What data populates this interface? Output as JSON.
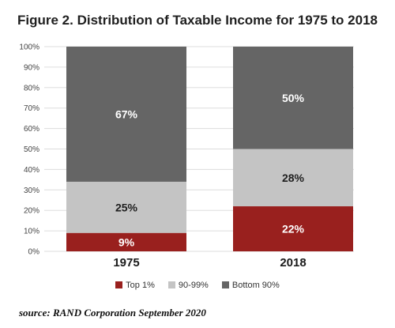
{
  "colors": {
    "top_1": "#99201e",
    "p90_99": "#c4c4c4",
    "bottom_90": "#656565",
    "label_on_dark": "#ffffff",
    "label_on_light": "#1f1f1f",
    "grid": "#dddddd"
  },
  "chart_data": {
    "type": "bar",
    "stacked": true,
    "title": "Figure 2. Distribution of Taxable Income for 1975 to 2018",
    "categories": [
      "1975",
      "2018"
    ],
    "series": [
      {
        "name": "Top 1%",
        "values": [
          9,
          22
        ],
        "labels": [
          "9%",
          "22%"
        ],
        "color": "#99201e"
      },
      {
        "name": "90-99%",
        "values": [
          25,
          28
        ],
        "labels": [
          "25%",
          "28%"
        ],
        "color": "#c4c4c4"
      },
      {
        "name": "Bottom 90%",
        "values": [
          67,
          50
        ],
        "labels": [
          "67%",
          "50%"
        ],
        "color": "#656565"
      }
    ],
    "ylim": [
      0,
      100
    ],
    "yticks": [
      0,
      10,
      20,
      30,
      40,
      50,
      60,
      70,
      80,
      90,
      100
    ],
    "ytick_labels": [
      "0%",
      "10%",
      "20%",
      "30%",
      "40%",
      "50%",
      "60%",
      "70%",
      "80%",
      "90%",
      "100%"
    ],
    "grid": true,
    "legend_position": "bottom"
  },
  "source_text": "source: RAND Corporation  September 2020"
}
